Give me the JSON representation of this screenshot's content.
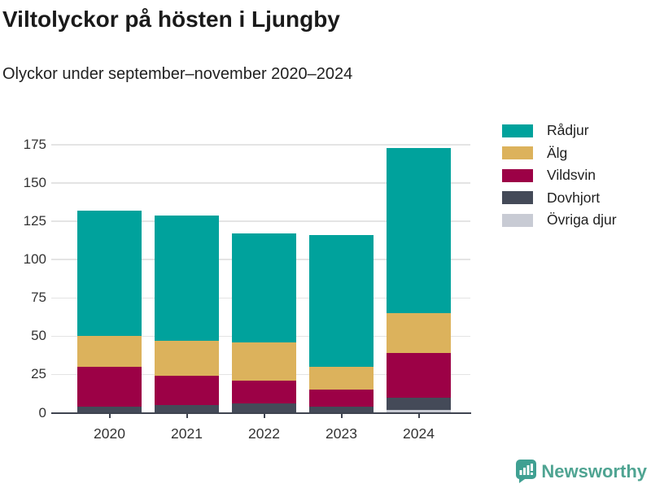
{
  "header": {
    "title": "Viltolyckor på hösten i Ljungby",
    "subtitle": "Olyckor under september–november 2020–2024"
  },
  "chart_data": {
    "type": "bar",
    "stacked": true,
    "title": "Viltolyckor på hösten i Ljungby",
    "subtitle": "Olyckor under september–november 2020–2024",
    "categories": [
      "2020",
      "2021",
      "2022",
      "2023",
      "2024"
    ],
    "series": [
      {
        "name": "Rådjur",
        "color": "#00a29c",
        "values": [
          82,
          82,
          71,
          86,
          108
        ]
      },
      {
        "name": "Älg",
        "color": "#dcb25c",
        "values": [
          20,
          23,
          25,
          15,
          26
        ]
      },
      {
        "name": "Vildsvin",
        "color": "#9c0146",
        "values": [
          26,
          19,
          15,
          11,
          29
        ]
      },
      {
        "name": "Dovhjort",
        "color": "#444a58",
        "values": [
          4,
          5,
          6,
          4,
          8
        ]
      },
      {
        "name": "Övriga djur",
        "color": "#c8cbd4",
        "values": [
          0,
          0,
          0,
          0,
          2
        ]
      }
    ],
    "stack_order_bottom_to_top": [
      "Övriga djur",
      "Dovhjort",
      "Vildsvin",
      "Älg",
      "Rådjur"
    ],
    "xlabel": "",
    "ylabel": "",
    "ylim": [
      0,
      175
    ],
    "yticks": [
      0,
      25,
      50,
      75,
      100,
      125,
      150,
      175
    ],
    "grid": "horizontal",
    "legend_position": "top-right"
  },
  "branding": {
    "name": "Newsworthy",
    "text_color": "#4fa492",
    "icon_color": "#3fa092"
  }
}
